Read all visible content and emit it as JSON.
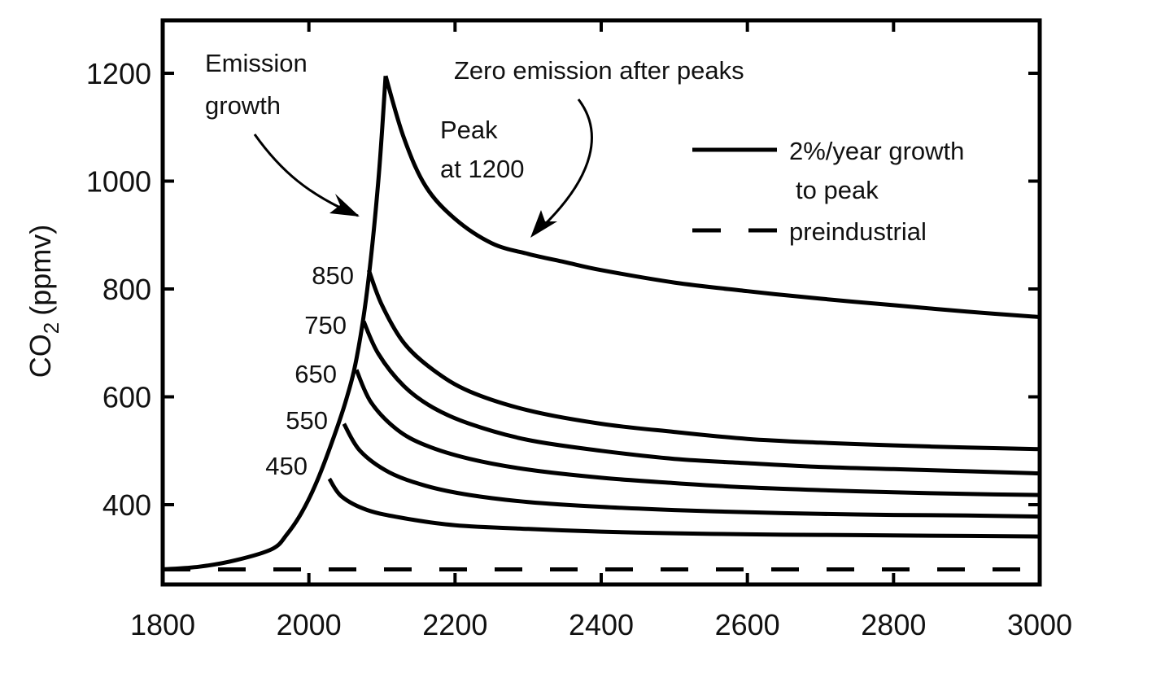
{
  "chart_data": {
    "type": "line",
    "title": "",
    "xlabel": "",
    "ylabel": "CO2 (ppmv)",
    "ylabel_main": "CO",
    "ylabel_sub": "2",
    "ylabel_unit": "(ppmv)",
    "xlim": [
      1800,
      3000
    ],
    "ylim": [
      260,
      1300
    ],
    "xticks": [
      1800,
      2000,
      2200,
      2400,
      2600,
      2800,
      3000
    ],
    "xtick_labels": [
      "1800",
      "2000",
      "2200",
      "2400",
      "2600",
      "2800",
      "3000"
    ],
    "yticks": [
      400,
      600,
      800,
      1000,
      1200
    ],
    "ytick_labels": [
      "400",
      "600",
      "800",
      "1000",
      "1200"
    ],
    "grid": false,
    "legend": {
      "placement": "top-right",
      "entries": [
        {
          "label_line1": "2%/year growth",
          "label_line2": "to peak",
          "style": "solid"
        },
        {
          "label_line1": "preindustrial",
          "label_line2": "",
          "style": "dashed"
        }
      ]
    },
    "growth_curve": {
      "name": "2%/year growth to peak",
      "x": [
        1800,
        1850,
        1900,
        1950,
        1970,
        1990,
        2010,
        2030,
        2050,
        2065,
        2080,
        2095,
        2105
      ],
      "y": [
        280,
        285,
        297,
        318,
        345,
        385,
        440,
        510,
        590,
        670,
        800,
        1000,
        1195
      ]
    },
    "series": [
      {
        "name": "Peak at 1200",
        "peak": 1200,
        "peak_year": 2105,
        "x": [
          2105,
          2130,
          2160,
          2200,
          2250,
          2300,
          2350,
          2400,
          2500,
          2600,
          2700,
          2800,
          2900,
          3000
        ],
        "y": [
          1195,
          1080,
          990,
          930,
          885,
          865,
          850,
          835,
          812,
          796,
          782,
          770,
          758,
          748
        ]
      },
      {
        "name": "850",
        "peak": 850,
        "peak_year": 2082,
        "x": [
          2082,
          2100,
          2130,
          2170,
          2220,
          2300,
          2400,
          2500,
          2600,
          2700,
          2800,
          2900,
          3000
        ],
        "y": [
          835,
          770,
          700,
          650,
          610,
          575,
          550,
          535,
          522,
          515,
          510,
          506,
          503
        ]
      },
      {
        "name": "750",
        "peak": 750,
        "peak_year": 2075,
        "x": [
          2075,
          2095,
          2130,
          2170,
          2220,
          2300,
          2400,
          2500,
          2600,
          2700,
          2800,
          2900,
          3000
        ],
        "y": [
          740,
          680,
          620,
          580,
          550,
          520,
          500,
          485,
          477,
          470,
          466,
          462,
          458
        ]
      },
      {
        "name": "650",
        "peak": 650,
        "peak_year": 2065,
        "x": [
          2065,
          2085,
          2120,
          2160,
          2220,
          2300,
          2400,
          2500,
          2600,
          2700,
          2800,
          2900,
          3000
        ],
        "y": [
          650,
          590,
          540,
          510,
          485,
          465,
          450,
          440,
          432,
          427,
          423,
          420,
          418
        ]
      },
      {
        "name": "550",
        "peak": 550,
        "peak_year": 2048,
        "x": [
          2048,
          2070,
          2110,
          2160,
          2220,
          2300,
          2400,
          2500,
          2600,
          2700,
          2800,
          2900,
          3000
        ],
        "y": [
          550,
          500,
          460,
          435,
          418,
          405,
          396,
          390,
          386,
          383,
          381,
          380,
          378
        ]
      },
      {
        "name": "450",
        "peak": 450,
        "peak_year": 2028,
        "x": [
          2028,
          2045,
          2080,
          2130,
          2200,
          2300,
          2400,
          2500,
          2600,
          2700,
          2800,
          2900,
          3000
        ],
        "y": [
          448,
          415,
          390,
          375,
          362,
          355,
          350,
          347,
          345,
          344,
          343,
          342,
          341
        ]
      },
      {
        "name": "preindustrial",
        "style": "dashed",
        "x": [
          1800,
          3000
        ],
        "y": [
          280,
          280
        ]
      }
    ],
    "peak_labels": [
      "850",
      "750",
      "650",
      "550",
      "450"
    ],
    "annotations": {
      "emission_growth": [
        "Emission",
        "growth"
      ],
      "zero_emission": "Zero emission after peaks",
      "peak_1200": [
        "Peak",
        "at 1200"
      ]
    }
  }
}
